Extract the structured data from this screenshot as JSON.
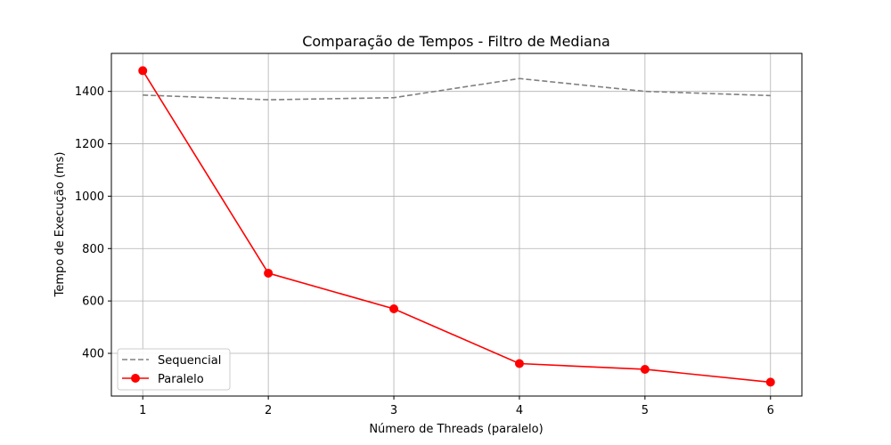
{
  "chart_data": {
    "type": "line",
    "title": "Comparação de Tempos - Filtro de Mediana",
    "xlabel": "Número de Threads (paralelo)",
    "ylabel": "Tempo de Execução (ms)",
    "x": [
      1,
      2,
      3,
      4,
      5,
      6
    ],
    "x_ticks": [
      "1",
      "2",
      "3",
      "4",
      "5",
      "6"
    ],
    "y_ticks": [
      400,
      600,
      800,
      1000,
      1200,
      1400
    ],
    "xlim": [
      0.75,
      6.25
    ],
    "ylim": [
      237,
      1545
    ],
    "grid": true,
    "legend_position": "lower-left",
    "series": [
      {
        "name": "Sequencial",
        "values": [
          1386,
          1368,
          1376,
          1449,
          1400,
          1384
        ],
        "color": "#808080",
        "style": "dashed",
        "marker": "none"
      },
      {
        "name": "Paralelo",
        "values": [
          1479,
          706,
          570,
          361,
          339,
          290
        ],
        "color": "#ff0000",
        "style": "solid",
        "marker": "circle"
      }
    ]
  }
}
